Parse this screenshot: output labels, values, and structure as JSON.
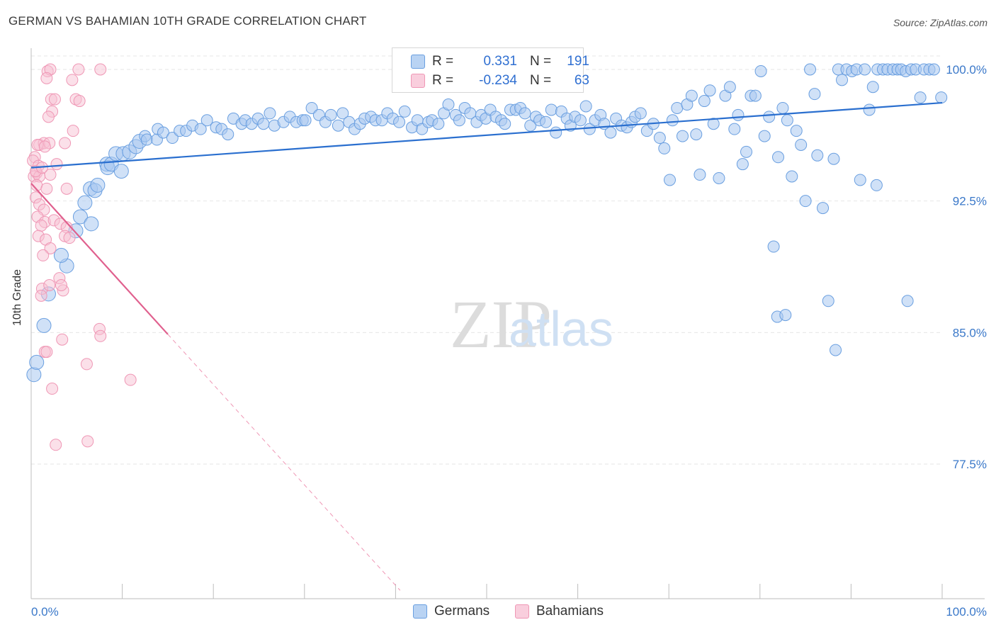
{
  "title": "GERMAN VS BAHAMIAN 10TH GRADE CORRELATION CHART",
  "source": "Source: ZipAtlas.com",
  "watermark": {
    "zip": "ZIP",
    "atlas": "atlas"
  },
  "legend": {
    "rows": [
      {
        "r_label": "R =",
        "r_value": "0.331",
        "n_label": "N =",
        "n_value": "191"
      },
      {
        "r_label": "R =",
        "r_value": "-0.234",
        "n_label": "N =",
        "n_value": "63"
      }
    ]
  },
  "bottom_legend": {
    "germans": "Germans",
    "bahamians": "Bahamians"
  },
  "colors": {
    "german_fill": "#a9c8f0",
    "german_stroke": "#6a9fe0",
    "german_line": "#2a6fcf",
    "bahamian_fill": "#f7c1d3",
    "bahamian_stroke": "#ef97b5",
    "bahamian_line": "#e0608e",
    "tick_label": "#3a78c9",
    "grid": "#e6e6e6"
  },
  "chart_data": {
    "type": "scatter",
    "title": "GERMAN VS BAHAMIAN 10TH GRADE CORRELATION CHART",
    "xlabel": "",
    "ylabel": "10th Grade",
    "xlim": [
      0,
      100
    ],
    "ylim": [
      70.0,
      101.5
    ],
    "x_tick_labels": [
      "0.0%",
      "100.0%"
    ],
    "y_ticks": [
      77.5,
      85.0,
      92.5,
      100.0
    ],
    "y_tick_labels": [
      "77.5%",
      "85.0%",
      "92.5%",
      "100.0%"
    ],
    "grid": true,
    "legend_position": "top-center",
    "series": [
      {
        "name": "Germans",
        "R": 0.331,
        "N": 191,
        "trend": {
          "x": [
            0,
            100
          ],
          "y": [
            94.4,
            98.1
          ]
        },
        "points": [
          [
            0.3,
            82.6
          ],
          [
            0.6,
            83.3
          ],
          [
            1.4,
            85.4
          ],
          [
            1.9,
            87.2
          ],
          [
            3.9,
            88.8
          ],
          [
            3.3,
            89.4
          ],
          [
            4.9,
            90.8
          ],
          [
            5.4,
            91.6
          ],
          [
            6.6,
            91.2
          ],
          [
            5.9,
            92.4
          ],
          [
            6.5,
            93.2
          ],
          [
            7.0,
            93.1
          ],
          [
            7.3,
            93.4
          ],
          [
            8.3,
            94.6
          ],
          [
            8.4,
            94.4
          ],
          [
            8.8,
            94.6
          ],
          [
            9.9,
            94.2
          ],
          [
            9.3,
            95.2
          ],
          [
            10.1,
            95.2
          ],
          [
            10.8,
            95.3
          ],
          [
            11.5,
            95.6
          ],
          [
            11.9,
            95.9
          ],
          [
            12.5,
            96.2
          ],
          [
            12.7,
            96.0
          ],
          [
            13.8,
            96.0
          ],
          [
            13.9,
            96.6
          ],
          [
            14.5,
            96.4
          ],
          [
            15.5,
            96.1
          ],
          [
            16.3,
            96.5
          ],
          [
            17.0,
            96.5
          ],
          [
            17.7,
            96.8
          ],
          [
            18.6,
            96.6
          ],
          [
            19.3,
            97.1
          ],
          [
            20.3,
            96.7
          ],
          [
            20.9,
            96.6
          ],
          [
            21.6,
            96.3
          ],
          [
            22.2,
            97.2
          ],
          [
            23.1,
            96.9
          ],
          [
            23.5,
            97.1
          ],
          [
            24.2,
            96.9
          ],
          [
            24.9,
            97.2
          ],
          [
            25.5,
            96.9
          ],
          [
            26.2,
            97.5
          ],
          [
            26.7,
            96.8
          ],
          [
            27.7,
            97.0
          ],
          [
            28.4,
            97.3
          ],
          [
            29.1,
            97.0
          ],
          [
            29.8,
            97.1
          ],
          [
            30.1,
            97.1
          ],
          [
            30.8,
            97.8
          ],
          [
            31.6,
            97.4
          ],
          [
            32.3,
            97.0
          ],
          [
            32.9,
            97.4
          ],
          [
            33.7,
            96.8
          ],
          [
            34.2,
            97.5
          ],
          [
            34.9,
            97.0
          ],
          [
            35.5,
            96.6
          ],
          [
            36.1,
            96.9
          ],
          [
            36.6,
            97.2
          ],
          [
            37.3,
            97.3
          ],
          [
            37.8,
            97.1
          ],
          [
            38.5,
            97.1
          ],
          [
            39.1,
            97.5
          ],
          [
            39.7,
            97.2
          ],
          [
            40.4,
            97.0
          ],
          [
            41.0,
            97.6
          ],
          [
            41.8,
            96.7
          ],
          [
            42.4,
            97.1
          ],
          [
            42.9,
            96.6
          ],
          [
            43.6,
            97.0
          ],
          [
            44.0,
            97.1
          ],
          [
            44.7,
            96.9
          ],
          [
            45.3,
            97.5
          ],
          [
            45.8,
            98.0
          ],
          [
            46.6,
            97.4
          ],
          [
            47.0,
            97.1
          ],
          [
            47.6,
            97.8
          ],
          [
            48.2,
            97.5
          ],
          [
            48.9,
            97.0
          ],
          [
            49.4,
            97.4
          ],
          [
            49.9,
            97.2
          ],
          [
            50.4,
            97.7
          ],
          [
            51.0,
            97.3
          ],
          [
            51.6,
            97.1
          ],
          [
            52.0,
            96.9
          ],
          [
            52.6,
            97.7
          ],
          [
            53.2,
            97.7
          ],
          [
            53.7,
            97.8
          ],
          [
            54.2,
            97.5
          ],
          [
            54.8,
            96.8
          ],
          [
            55.4,
            97.3
          ],
          [
            55.8,
            97.1
          ],
          [
            56.5,
            97.0
          ],
          [
            57.1,
            97.7
          ],
          [
            57.6,
            96.4
          ],
          [
            58.2,
            97.6
          ],
          [
            58.8,
            97.2
          ],
          [
            59.2,
            96.8
          ],
          [
            59.7,
            97.3
          ],
          [
            60.3,
            97.1
          ],
          [
            60.9,
            97.9
          ],
          [
            61.3,
            96.6
          ],
          [
            61.9,
            97.1
          ],
          [
            62.5,
            97.4
          ],
          [
            62.9,
            96.9
          ],
          [
            63.6,
            96.4
          ],
          [
            64.2,
            97.2
          ],
          [
            64.8,
            96.8
          ],
          [
            65.4,
            96.7
          ],
          [
            65.9,
            97.0
          ],
          [
            66.3,
            97.3
          ],
          [
            66.9,
            97.5
          ],
          [
            67.6,
            96.5
          ],
          [
            68.3,
            96.9
          ],
          [
            69.0,
            96.1
          ],
          [
            69.5,
            95.5
          ],
          [
            70.1,
            93.7
          ],
          [
            70.4,
            97.1
          ],
          [
            70.9,
            97.8
          ],
          [
            71.5,
            96.2
          ],
          [
            72.0,
            98.0
          ],
          [
            72.5,
            98.5
          ],
          [
            73.0,
            96.3
          ],
          [
            73.4,
            94.0
          ],
          [
            73.9,
            98.2
          ],
          [
            74.5,
            98.8
          ],
          [
            74.9,
            96.9
          ],
          [
            75.5,
            93.8
          ],
          [
            76.2,
            98.5
          ],
          [
            76.7,
            99.0
          ],
          [
            77.2,
            96.6
          ],
          [
            77.6,
            97.4
          ],
          [
            78.1,
            94.6
          ],
          [
            78.5,
            95.3
          ],
          [
            79.0,
            98.5
          ],
          [
            79.5,
            98.5
          ],
          [
            80.1,
            99.9
          ],
          [
            80.5,
            96.2
          ],
          [
            81.0,
            97.3
          ],
          [
            81.5,
            89.9
          ],
          [
            82.0,
            95.0
          ],
          [
            82.5,
            97.8
          ],
          [
            83.0,
            97.1
          ],
          [
            83.5,
            93.9
          ],
          [
            84.0,
            96.5
          ],
          [
            84.5,
            95.7
          ],
          [
            85.0,
            92.5
          ],
          [
            85.5,
            100.0
          ],
          [
            86.0,
            98.6
          ],
          [
            86.3,
            95.1
          ],
          [
            86.9,
            92.1
          ],
          [
            87.5,
            86.8
          ],
          [
            88.1,
            94.9
          ],
          [
            88.6,
            100.0
          ],
          [
            89.0,
            99.4
          ],
          [
            89.5,
            100.0
          ],
          [
            90.1,
            99.9
          ],
          [
            90.6,
            100.0
          ],
          [
            91.0,
            93.7
          ],
          [
            91.5,
            100.0
          ],
          [
            92.0,
            97.7
          ],
          [
            92.4,
            99.0
          ],
          [
            92.9,
            100.0
          ],
          [
            93.5,
            100.0
          ],
          [
            94.0,
            100.0
          ],
          [
            94.6,
            100.0
          ],
          [
            95.1,
            100.0
          ],
          [
            95.5,
            100.0
          ],
          [
            96.0,
            99.9
          ],
          [
            96.6,
            100.0
          ],
          [
            97.1,
            100.0
          ],
          [
            97.6,
            98.4
          ],
          [
            98.0,
            100.0
          ],
          [
            98.6,
            100.0
          ],
          [
            99.1,
            100.0
          ],
          [
            99.9,
            98.4
          ],
          [
            81.9,
            85.9
          ],
          [
            82.8,
            86.0
          ],
          [
            88.3,
            84.0
          ],
          [
            92.8,
            93.4
          ],
          [
            96.2,
            86.8
          ]
        ]
      },
      {
        "name": "Bahamians",
        "R": -0.234,
        "N": 63,
        "trend": {
          "x": [
            0,
            15
          ],
          "y": [
            93.5,
            84.9
          ]
        },
        "trend_dashed": {
          "x": [
            15,
            40.5
          ],
          "y": [
            84.9,
            70.3
          ]
        },
        "points": [
          [
            1.8,
            99.9
          ],
          [
            2.1,
            100.0
          ],
          [
            5.2,
            100.0
          ],
          [
            7.6,
            100.0
          ],
          [
            1.7,
            99.5
          ],
          [
            4.5,
            99.4
          ],
          [
            4.9,
            98.3
          ],
          [
            5.3,
            98.2
          ],
          [
            2.2,
            98.3
          ],
          [
            2.6,
            98.3
          ],
          [
            2.3,
            97.6
          ],
          [
            1.9,
            97.3
          ],
          [
            4.6,
            96.5
          ],
          [
            0.9,
            95.7
          ],
          [
            1.4,
            95.8
          ],
          [
            2.0,
            95.8
          ],
          [
            3.7,
            95.8
          ],
          [
            0.7,
            95.7
          ],
          [
            0.4,
            95.0
          ],
          [
            1.5,
            95.6
          ],
          [
            0.2,
            94.8
          ],
          [
            0.8,
            94.5
          ],
          [
            2.8,
            94.6
          ],
          [
            0.6,
            94.1
          ],
          [
            2.1,
            94.0
          ],
          [
            0.3,
            93.9
          ],
          [
            0.9,
            93.9
          ],
          [
            0.6,
            93.4
          ],
          [
            1.7,
            93.2
          ],
          [
            3.9,
            93.2
          ],
          [
            0.5,
            92.7
          ],
          [
            0.9,
            92.3
          ],
          [
            1.4,
            92.0
          ],
          [
            0.7,
            91.6
          ],
          [
            1.5,
            91.3
          ],
          [
            1.1,
            91.1
          ],
          [
            2.5,
            91.4
          ],
          [
            3.2,
            91.2
          ],
          [
            3.9,
            91.0
          ],
          [
            0.8,
            90.5
          ],
          [
            1.6,
            90.3
          ],
          [
            3.7,
            90.5
          ],
          [
            4.2,
            90.4
          ],
          [
            2.1,
            89.8
          ],
          [
            1.3,
            89.4
          ],
          [
            3.1,
            88.1
          ],
          [
            1.2,
            87.5
          ],
          [
            2.0,
            87.7
          ],
          [
            1.1,
            87.1
          ],
          [
            3.5,
            87.4
          ],
          [
            7.5,
            85.2
          ],
          [
            7.6,
            84.8
          ],
          [
            3.4,
            84.6
          ],
          [
            1.5,
            83.9
          ],
          [
            1.7,
            83.9
          ],
          [
            6.1,
            83.2
          ],
          [
            2.3,
            81.8
          ],
          [
            10.9,
            82.3
          ],
          [
            2.7,
            78.6
          ],
          [
            6.2,
            78.8
          ],
          [
            3.3,
            87.7
          ],
          [
            0.5,
            94.2
          ],
          [
            1.2,
            94.4
          ]
        ]
      }
    ]
  }
}
